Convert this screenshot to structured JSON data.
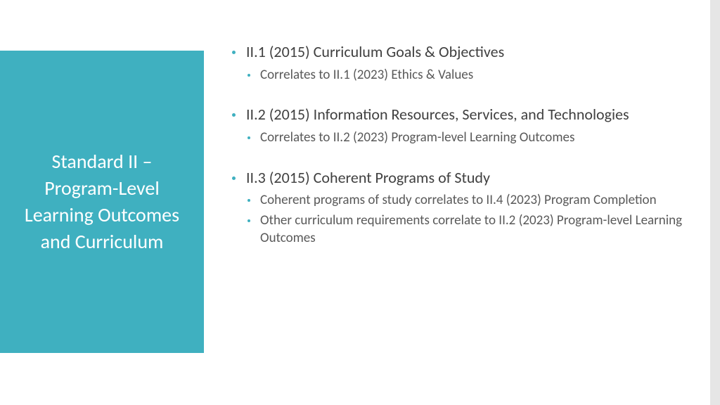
{
  "colors": {
    "accent": "#3fb0c0",
    "text_main": "#404040",
    "text_sub": "#595959",
    "bullet_main": "#3fb0c0",
    "bullet_sub": "#3fb0c0",
    "right_bar": "#e6e6e6",
    "title_text": "#ffffff",
    "background": "#ffffff"
  },
  "title": "Standard II – Program-Level Learning Outcomes and Curriculum",
  "groups": [
    {
      "main": "II.1 (2015)  Curriculum Goals & Objectives",
      "subs": [
        "Correlates to II.1 (2023)  Ethics & Values"
      ]
    },
    {
      "main": "II.2 (2015)  Information Resources, Services, and Technologies",
      "subs": [
        "Correlates to II.2 (2023)  Program-level Learning Outcomes"
      ]
    },
    {
      "main": "II.3 (2015)  Coherent Programs of Study",
      "subs": [
        "Coherent programs of study correlates to II.4 (2023)  Program Completion",
        "Other curriculum requirements correlate to II.2 (2023)  Program-level Learning Outcomes"
      ]
    }
  ]
}
